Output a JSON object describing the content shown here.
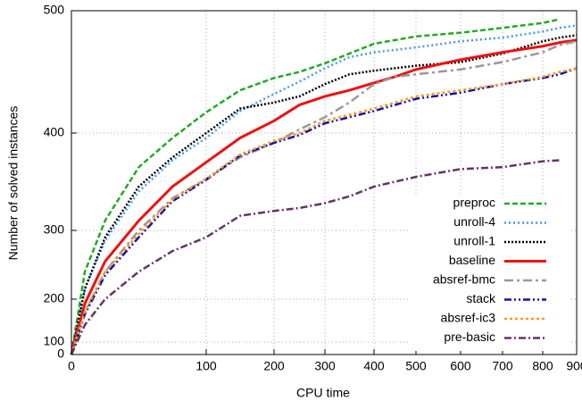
{
  "chart_data": {
    "type": "line",
    "x_label": "CPU time",
    "y_label": "Number of solved instances",
    "x": [
      0,
      10,
      25,
      50,
      75,
      100,
      150,
      200,
      250,
      300,
      350,
      400,
      450,
      500,
      600,
      700,
      800,
      850,
      900
    ],
    "xlim": [
      0,
      900
    ],
    "xticks": [
      0,
      100,
      200,
      300,
      400,
      500,
      600,
      700,
      800,
      900
    ],
    "ylim": [
      0,
      500
    ],
    "yticks": [
      0,
      100,
      200,
      300,
      400,
      500
    ],
    "grid": true,
    "legend": "bottom-right",
    "series": [
      {
        "name": "preproc",
        "color": "#22aa22",
        "dash": "6,3",
        "values": [
          0,
          240,
          310,
          365,
          395,
          417,
          435,
          445,
          450,
          457,
          465,
          473,
          476,
          479,
          482,
          486,
          490,
          493,
          null
        ]
      },
      {
        "name": "unroll-4",
        "color": "#4499ee",
        "dash": "2,3",
        "values": [
          0,
          215,
          285,
          340,
          372,
          395,
          418,
          432,
          442,
          453,
          462,
          466,
          468,
          470,
          475,
          478,
          483,
          486,
          488
        ]
      },
      {
        "name": "unroll-1",
        "color": "#000000",
        "dash": "2,2",
        "values": [
          0,
          215,
          290,
          345,
          375,
          400,
          420,
          425,
          430,
          440,
          448,
          451,
          453,
          455,
          458,
          465,
          475,
          478,
          480
        ]
      },
      {
        "name": "baseline",
        "color": "#ee1111",
        "dash": "none",
        "values": [
          0,
          190,
          255,
          310,
          345,
          370,
          395,
          410,
          423,
          430,
          435,
          441,
          446,
          452,
          460,
          466,
          471,
          474,
          476
        ]
      },
      {
        "name": "absref-bmc",
        "color": "#999999",
        "dash": "10,4,3,4",
        "values": [
          0,
          170,
          240,
          300,
          333,
          353,
          375,
          390,
          403,
          413,
          425,
          440,
          446,
          448,
          452,
          458,
          466,
          472,
          475
        ]
      },
      {
        "name": "stack",
        "color": "#1111aa",
        "dash": "8,3,2,3,2,3",
        "values": [
          0,
          165,
          235,
          290,
          330,
          352,
          377,
          390,
          398,
          408,
          413,
          418,
          423,
          428,
          433,
          440,
          445,
          448,
          453
        ]
      },
      {
        "name": "absref-ic3",
        "color": "#ff9922",
        "dash": "3,3",
        "values": [
          0,
          170,
          240,
          295,
          332,
          353,
          378,
          392,
          400,
          410,
          415,
          420,
          425,
          430,
          435,
          440,
          446,
          450,
          453
        ]
      },
      {
        "name": "pre-basic",
        "color": "#663366",
        "dash": "8,3,2,3",
        "values": [
          0,
          140,
          200,
          240,
          270,
          290,
          315,
          320,
          323,
          328,
          335,
          345,
          350,
          355,
          363,
          365,
          371,
          372,
          null
        ]
      }
    ]
  }
}
